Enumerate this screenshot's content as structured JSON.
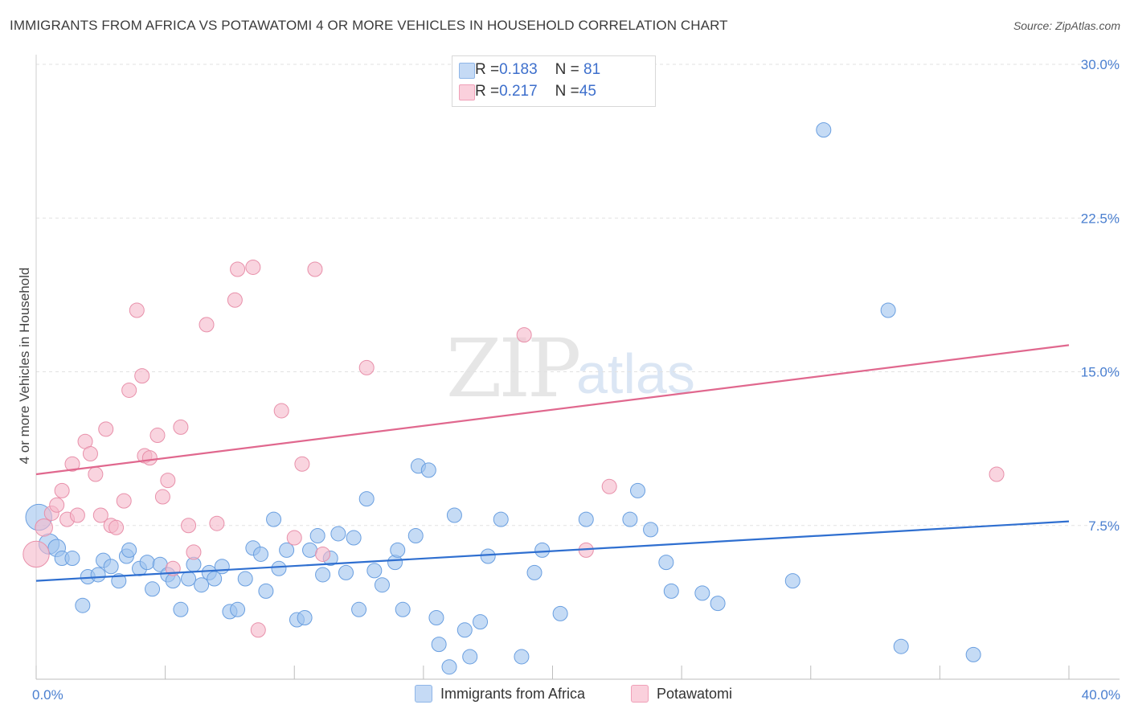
{
  "title": "IMMIGRANTS FROM AFRICA VS POTAWATOMI 4 OR MORE VEHICLES IN HOUSEHOLD CORRELATION CHART",
  "source": "Source: ZipAtlas.com",
  "watermark": {
    "zip": "ZIP",
    "atlas": "atlas"
  },
  "legend_top": [
    {
      "r_label": "R = ",
      "r_value": "0.183",
      "n_label": "N = ",
      "n_value": " 81",
      "color": "#9fc3ef"
    },
    {
      "r_label": "R = ",
      "r_value": "0.217",
      "n_label": "N = ",
      "n_value": "45",
      "color": "#f5b8c9"
    }
  ],
  "chart_data": {
    "type": "scatter",
    "title": "IMMIGRANTS FROM AFRICA VS POTAWATOMI 4 OR MORE VEHICLES IN HOUSEHOLD CORRELATION CHART",
    "xlabel": "",
    "ylabel": "4 or more Vehicles in Household",
    "xlim": [
      0,
      40
    ],
    "ylim": [
      0,
      30.5
    ],
    "x_tick_labels": [
      {
        "value": 0,
        "label": "0.0%"
      },
      {
        "value": 40,
        "label": "40.0%"
      }
    ],
    "y_tick_labels": [
      {
        "value": 7.5,
        "label": "7.5%"
      },
      {
        "value": 15,
        "label": "15.0%"
      },
      {
        "value": 22.5,
        "label": "22.5%"
      },
      {
        "value": 30,
        "label": "30.0%"
      }
    ],
    "grid": true,
    "legend_position": "bottom",
    "series": [
      {
        "name": "Immigrants from Africa",
        "color": "#9fc3ef",
        "stroke": "#6a9fe0",
        "trend": {
          "x": [
            0,
            40
          ],
          "y": [
            4.8,
            7.7
          ],
          "color": "#2f6fd0"
        },
        "points": [
          [
            0.1,
            7.9,
            1.8
          ],
          [
            0.5,
            6.6,
            1.4
          ],
          [
            0.8,
            6.4,
            1.2
          ],
          [
            1.0,
            5.9,
            1.0
          ],
          [
            1.4,
            5.9,
            1.0
          ],
          [
            1.8,
            3.6,
            1.0
          ],
          [
            2.0,
            5.0,
            1.0
          ],
          [
            2.4,
            5.1,
            1.0
          ],
          [
            2.6,
            5.8,
            1.0
          ],
          [
            2.9,
            5.5,
            1.0
          ],
          [
            3.2,
            4.8,
            1.0
          ],
          [
            3.5,
            6.0,
            1.0
          ],
          [
            3.6,
            6.3,
            1.0
          ],
          [
            4.0,
            5.4,
            1.0
          ],
          [
            4.3,
            5.7,
            1.0
          ],
          [
            4.5,
            4.4,
            1.0
          ],
          [
            4.8,
            5.6,
            1.0
          ],
          [
            5.1,
            5.1,
            1.0
          ],
          [
            5.3,
            4.8,
            1.0
          ],
          [
            5.6,
            3.4,
            1.0
          ],
          [
            5.9,
            4.9,
            1.0
          ],
          [
            6.1,
            5.6,
            1.0
          ],
          [
            6.4,
            4.6,
            1.0
          ],
          [
            6.7,
            5.2,
            1.0
          ],
          [
            6.9,
            4.9,
            1.0
          ],
          [
            7.2,
            5.5,
            1.0
          ],
          [
            7.5,
            3.3,
            1.0
          ],
          [
            7.8,
            3.4,
            1.0
          ],
          [
            8.1,
            4.9,
            1.0
          ],
          [
            8.4,
            6.4,
            1.0
          ],
          [
            8.7,
            6.1,
            1.0
          ],
          [
            8.9,
            4.3,
            1.0
          ],
          [
            9.2,
            7.8,
            1.0
          ],
          [
            9.4,
            5.4,
            1.0
          ],
          [
            9.7,
            6.3,
            1.0
          ],
          [
            10.1,
            2.9,
            1.0
          ],
          [
            10.4,
            3.0,
            1.0
          ],
          [
            10.6,
            6.3,
            1.0
          ],
          [
            10.9,
            7.0,
            1.0
          ],
          [
            11.1,
            5.1,
            1.0
          ],
          [
            11.4,
            5.9,
            1.0
          ],
          [
            11.7,
            7.1,
            1.0
          ],
          [
            12.0,
            5.2,
            1.0
          ],
          [
            12.3,
            6.9,
            1.0
          ],
          [
            12.5,
            3.4,
            1.0
          ],
          [
            12.8,
            8.8,
            1.0
          ],
          [
            13.1,
            5.3,
            1.0
          ],
          [
            13.4,
            4.6,
            1.0
          ],
          [
            13.9,
            5.7,
            1.0
          ],
          [
            14.0,
            6.3,
            1.0
          ],
          [
            14.2,
            3.4,
            1.0
          ],
          [
            14.7,
            7.0,
            1.0
          ],
          [
            14.8,
            10.4,
            1.0
          ],
          [
            15.2,
            10.2,
            1.0
          ],
          [
            15.5,
            3.0,
            1.0
          ],
          [
            15.6,
            1.7,
            1.0
          ],
          [
            16.0,
            0.6,
            1.0
          ],
          [
            16.2,
            8.0,
            1.0
          ],
          [
            16.6,
            2.4,
            1.0
          ],
          [
            16.8,
            1.1,
            1.0
          ],
          [
            17.2,
            2.8,
            1.0
          ],
          [
            17.5,
            6.0,
            1.0
          ],
          [
            18.0,
            7.8,
            1.0
          ],
          [
            18.8,
            1.1,
            1.0
          ],
          [
            19.3,
            5.2,
            1.0
          ],
          [
            19.6,
            6.3,
            1.0
          ],
          [
            20.3,
            3.2,
            1.0
          ],
          [
            21.3,
            7.8,
            1.0
          ],
          [
            23.0,
            7.8,
            1.0
          ],
          [
            23.3,
            9.2,
            1.0
          ],
          [
            23.8,
            7.3,
            1.0
          ],
          [
            24.4,
            5.7,
            1.0
          ],
          [
            24.6,
            4.3,
            1.0
          ],
          [
            25.8,
            4.2,
            1.0
          ],
          [
            26.4,
            3.7,
            1.0
          ],
          [
            29.3,
            4.8,
            1.0
          ],
          [
            30.5,
            26.8,
            1.0
          ],
          [
            33.0,
            18.0,
            1.0
          ],
          [
            33.5,
            1.6,
            1.0
          ],
          [
            36.3,
            1.2,
            1.0
          ]
        ]
      },
      {
        "name": "Potawatomi",
        "color": "#f5b8c9",
        "stroke": "#e890aa",
        "trend": {
          "x": [
            0,
            40
          ],
          "y": [
            10.0,
            16.3
          ],
          "color": "#e0688e"
        },
        "points": [
          [
            0.0,
            6.1,
            1.8
          ],
          [
            0.3,
            7.4,
            1.2
          ],
          [
            0.6,
            8.1,
            1.0
          ],
          [
            0.8,
            8.5,
            1.0
          ],
          [
            1.0,
            9.2,
            1.0
          ],
          [
            1.2,
            7.8,
            1.0
          ],
          [
            1.4,
            10.5,
            1.0
          ],
          [
            1.6,
            8.0,
            1.0
          ],
          [
            1.9,
            11.6,
            1.0
          ],
          [
            2.1,
            11.0,
            1.0
          ],
          [
            2.3,
            10.0,
            1.0
          ],
          [
            2.5,
            8.0,
            1.0
          ],
          [
            2.7,
            12.2,
            1.0
          ],
          [
            2.9,
            7.5,
            1.0
          ],
          [
            3.1,
            7.4,
            1.0
          ],
          [
            3.4,
            8.7,
            1.0
          ],
          [
            3.6,
            14.1,
            1.0
          ],
          [
            3.9,
            18.0,
            1.0
          ],
          [
            4.1,
            14.8,
            1.0
          ],
          [
            4.2,
            10.9,
            1.0
          ],
          [
            4.4,
            10.8,
            1.0
          ],
          [
            4.7,
            11.9,
            1.0
          ],
          [
            4.9,
            8.9,
            1.0
          ],
          [
            5.1,
            9.7,
            1.0
          ],
          [
            5.3,
            5.4,
            1.0
          ],
          [
            5.6,
            12.3,
            1.0
          ],
          [
            5.9,
            7.5,
            1.0
          ],
          [
            6.1,
            6.2,
            1.0
          ],
          [
            6.6,
            17.3,
            1.0
          ],
          [
            7.0,
            7.6,
            1.0
          ],
          [
            7.7,
            18.5,
            1.0
          ],
          [
            7.8,
            20.0,
            1.0
          ],
          [
            8.4,
            20.1,
            1.0
          ],
          [
            8.6,
            2.4,
            1.0
          ],
          [
            9.5,
            13.1,
            1.0
          ],
          [
            10.0,
            6.9,
            1.0
          ],
          [
            10.3,
            10.5,
            1.0
          ],
          [
            10.8,
            20.0,
            1.0
          ],
          [
            11.1,
            6.1,
            1.0
          ],
          [
            12.8,
            15.2,
            1.0
          ],
          [
            18.9,
            16.8,
            1.0
          ],
          [
            21.3,
            6.3,
            1.0
          ],
          [
            22.2,
            9.4,
            1.0
          ],
          [
            37.2,
            10.0,
            1.0
          ]
        ]
      }
    ]
  }
}
